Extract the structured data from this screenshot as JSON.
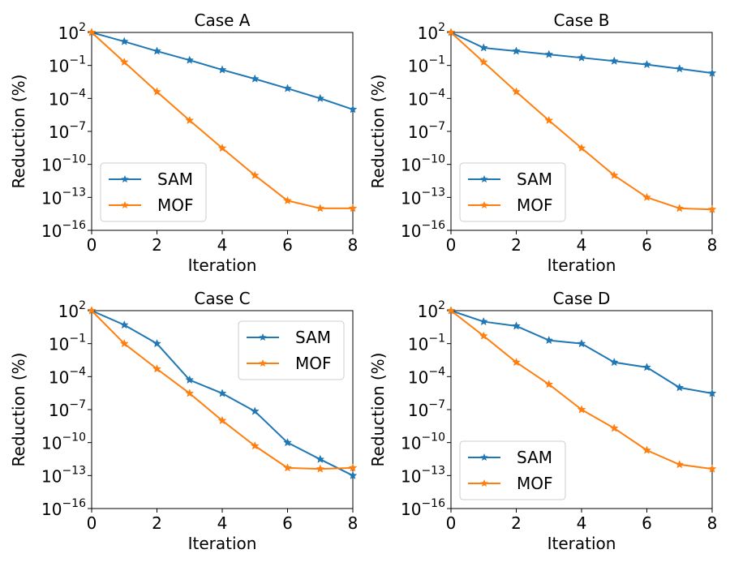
{
  "chart_data": [
    {
      "type": "line",
      "title": "Case A",
      "xlabel": "Iteration",
      "ylabel": "Reduction (%)",
      "yscale": "log",
      "xlim": [
        0,
        8
      ],
      "ylim_exp": [
        -16,
        2
      ],
      "x_ticks": [
        "0",
        "2",
        "4",
        "6",
        "8"
      ],
      "y_ticks": [
        {
          "base": "10",
          "exp": "2"
        },
        {
          "base": "10",
          "exp": "−1"
        },
        {
          "base": "10",
          "exp": "−4"
        },
        {
          "base": "10",
          "exp": "−7"
        },
        {
          "base": "10",
          "exp": "−10"
        },
        {
          "base": "10",
          "exp": "−13"
        },
        {
          "base": "10",
          "exp": "−16"
        }
      ],
      "legend": "lower-left",
      "x": [
        0,
        1,
        2,
        3,
        4,
        5,
        6,
        7,
        8
      ],
      "series": [
        {
          "name": "SAM",
          "color": "#1f77b4",
          "marker": "star",
          "values": [
            100,
            15,
            2,
            0.3,
            0.04,
            0.006,
            0.0008,
            0.0001,
            1e-05
          ]
        },
        {
          "name": "MOF",
          "color": "#ff7f0e",
          "marker": "star",
          "values": [
            100,
            0.2,
            0.0004,
            1e-06,
            3e-09,
            1e-11,
            5e-14,
            1e-14,
            1e-14
          ]
        }
      ]
    },
    {
      "type": "line",
      "title": "Case B",
      "xlabel": "Iteration",
      "ylabel": "Reduction (%)",
      "yscale": "log",
      "xlim": [
        0,
        8
      ],
      "ylim_exp": [
        -16,
        2
      ],
      "x_ticks": [
        "0",
        "2",
        "4",
        "6",
        "8"
      ],
      "y_ticks": [
        {
          "base": "10",
          "exp": "2"
        },
        {
          "base": "10",
          "exp": "−1"
        },
        {
          "base": "10",
          "exp": "−4"
        },
        {
          "base": "10",
          "exp": "−7"
        },
        {
          "base": "10",
          "exp": "−10"
        },
        {
          "base": "10",
          "exp": "−13"
        },
        {
          "base": "10",
          "exp": "−16"
        }
      ],
      "legend": "lower-left",
      "x": [
        0,
        1,
        2,
        3,
        4,
        5,
        6,
        7,
        8
      ],
      "series": [
        {
          "name": "SAM",
          "color": "#1f77b4",
          "marker": "star",
          "values": [
            100,
            4,
            2,
            1,
            0.5,
            0.25,
            0.12,
            0.05,
            0.02
          ]
        },
        {
          "name": "MOF",
          "color": "#ff7f0e",
          "marker": "star",
          "values": [
            100,
            0.2,
            0.0004,
            1e-06,
            3e-09,
            1e-11,
            1e-13,
            1e-14,
            8e-15
          ]
        }
      ]
    },
    {
      "type": "line",
      "title": "Case C",
      "xlabel": "Iteration",
      "ylabel": "Reduction (%)",
      "yscale": "log",
      "xlim": [
        0,
        8
      ],
      "ylim_exp": [
        -16,
        2
      ],
      "x_ticks": [
        "0",
        "2",
        "4",
        "6",
        "8"
      ],
      "y_ticks": [
        {
          "base": "10",
          "exp": "2"
        },
        {
          "base": "10",
          "exp": "−1"
        },
        {
          "base": "10",
          "exp": "−4"
        },
        {
          "base": "10",
          "exp": "−7"
        },
        {
          "base": "10",
          "exp": "−10"
        },
        {
          "base": "10",
          "exp": "−13"
        },
        {
          "base": "10",
          "exp": "−16"
        }
      ],
      "legend": "upper-right",
      "x": [
        0,
        1,
        2,
        3,
        4,
        5,
        6,
        7,
        8
      ],
      "series": [
        {
          "name": "SAM",
          "color": "#1f77b4",
          "marker": "star",
          "values": [
            100,
            5,
            0.1,
            5e-05,
            3e-06,
            7e-08,
            1e-10,
            3e-12,
            1e-13
          ]
        },
        {
          "name": "MOF",
          "color": "#ff7f0e",
          "marker": "star",
          "values": [
            100,
            0.1,
            0.0005,
            3e-06,
            1e-08,
            5e-11,
            5e-13,
            4e-13,
            5e-13
          ]
        }
      ]
    },
    {
      "type": "line",
      "title": "Case D",
      "xlabel": "Iteration",
      "ylabel": "Reduction (%)",
      "yscale": "log",
      "xlim": [
        0,
        8
      ],
      "ylim_exp": [
        -16,
        2
      ],
      "x_ticks": [
        "0",
        "2",
        "4",
        "6",
        "8"
      ],
      "y_ticks": [
        {
          "base": "10",
          "exp": "2"
        },
        {
          "base": "10",
          "exp": "−1"
        },
        {
          "base": "10",
          "exp": "−4"
        },
        {
          "base": "10",
          "exp": "−7"
        },
        {
          "base": "10",
          "exp": "−10"
        },
        {
          "base": "10",
          "exp": "−13"
        },
        {
          "base": "10",
          "exp": "−16"
        }
      ],
      "legend": "lower-left",
      "x": [
        0,
        1,
        2,
        3,
        4,
        5,
        6,
        7,
        8
      ],
      "series": [
        {
          "name": "SAM",
          "color": "#1f77b4",
          "marker": "star",
          "values": [
            100,
            10,
            4,
            0.2,
            0.1,
            0.002,
            0.0007,
            1e-05,
            3e-06
          ]
        },
        {
          "name": "MOF",
          "color": "#ff7f0e",
          "marker": "star",
          "values": [
            100,
            0.5,
            0.002,
            2e-05,
            1e-07,
            2e-09,
            2e-11,
            1e-12,
            4e-13
          ]
        }
      ]
    }
  ]
}
